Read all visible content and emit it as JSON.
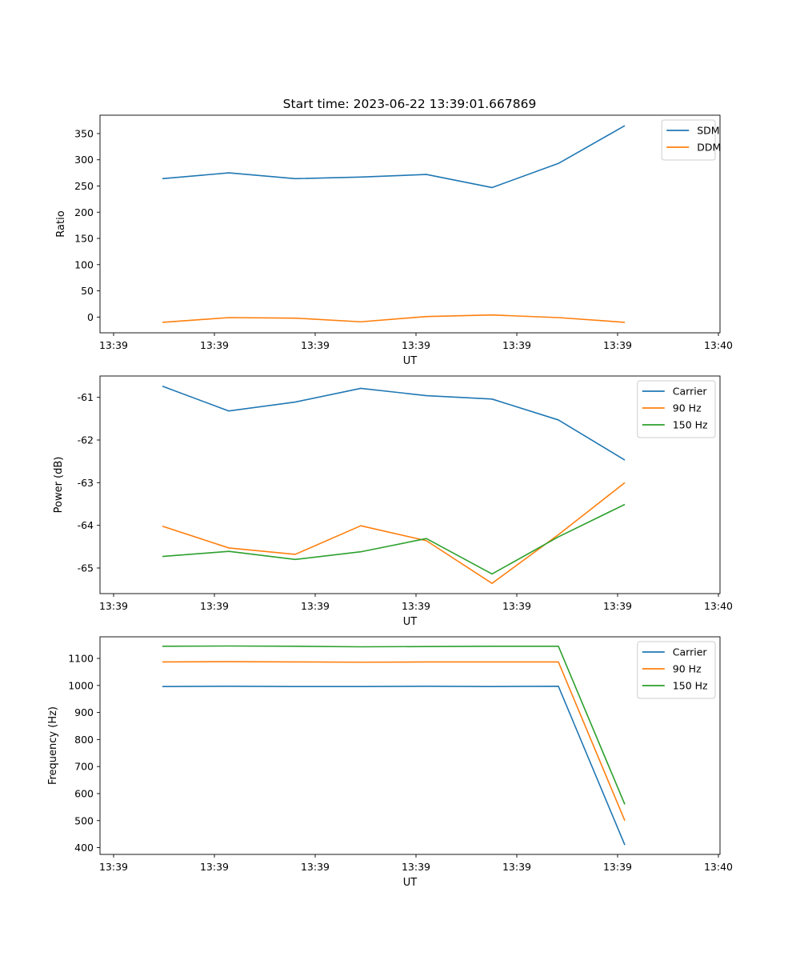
{
  "title": "Start time: 2023-06-22 13:39:01.667869",
  "chart_data": [
    {
      "type": "line",
      "xlabel": "UT",
      "ylabel": "Ratio",
      "x_tick_labels": [
        "13:39",
        "13:39",
        "13:39",
        "13:39",
        "13:39",
        "13:39",
        "13:40"
      ],
      "ylim": [
        -30,
        385
      ],
      "y_ticks": [
        0,
        50,
        100,
        150,
        200,
        250,
        300,
        350
      ],
      "legend_position": "top-right",
      "series": [
        {
          "name": "SDM",
          "color": "#1f77b4",
          "values": [
            264,
            275,
            264,
            267,
            272,
            247,
            293,
            365
          ]
        },
        {
          "name": "DDM",
          "color": "#ff7f0e",
          "values": [
            -10,
            -1,
            -2,
            -9,
            1,
            4,
            -1,
            -10
          ]
        }
      ]
    },
    {
      "type": "line",
      "xlabel": "UT",
      "ylabel": "Power (dB)",
      "x_tick_labels": [
        "13:39",
        "13:39",
        "13:39",
        "13:39",
        "13:39",
        "13:39",
        "13:40"
      ],
      "ylim": [
        -65.6,
        -60.5
      ],
      "y_ticks": [
        -65,
        -64,
        -63,
        -62,
        -61
      ],
      "legend_position": "top-right",
      "series": [
        {
          "name": "Carrier",
          "color": "#1f77b4",
          "values": [
            -60.74,
            -61.32,
            -61.11,
            -60.79,
            -60.96,
            -61.04,
            -61.53,
            -62.47
          ]
        },
        {
          "name": "90 Hz",
          "color": "#ff7f0e",
          "values": [
            -64.02,
            -64.53,
            -64.68,
            -64.01,
            -64.36,
            -65.36,
            -64.22,
            -63.0
          ]
        },
        {
          "name": "150 Hz",
          "color": "#2ca02c",
          "values": [
            -64.73,
            -64.61,
            -64.8,
            -64.62,
            -64.31,
            -65.14,
            -64.27,
            -63.51
          ]
        }
      ]
    },
    {
      "type": "line",
      "xlabel": "UT",
      "ylabel": "Frequency (Hz)",
      "x_tick_labels": [
        "13:39",
        "13:39",
        "13:39",
        "13:39",
        "13:39",
        "13:39",
        "13:40"
      ],
      "ylim": [
        375,
        1180
      ],
      "y_ticks": [
        400,
        500,
        600,
        700,
        800,
        900,
        1000,
        1100
      ],
      "legend_position": "top-right",
      "series": [
        {
          "name": "Carrier",
          "color": "#1f77b4",
          "values": [
            996,
            997,
            996,
            996,
            997,
            996,
            997,
            410
          ]
        },
        {
          "name": "90 Hz",
          "color": "#ff7f0e",
          "values": [
            1087,
            1088,
            1087,
            1086,
            1087,
            1087,
            1087,
            500
          ]
        },
        {
          "name": "150 Hz",
          "color": "#2ca02c",
          "values": [
            1145,
            1146,
            1145,
            1143,
            1144,
            1145,
            1145,
            560
          ]
        }
      ]
    }
  ]
}
